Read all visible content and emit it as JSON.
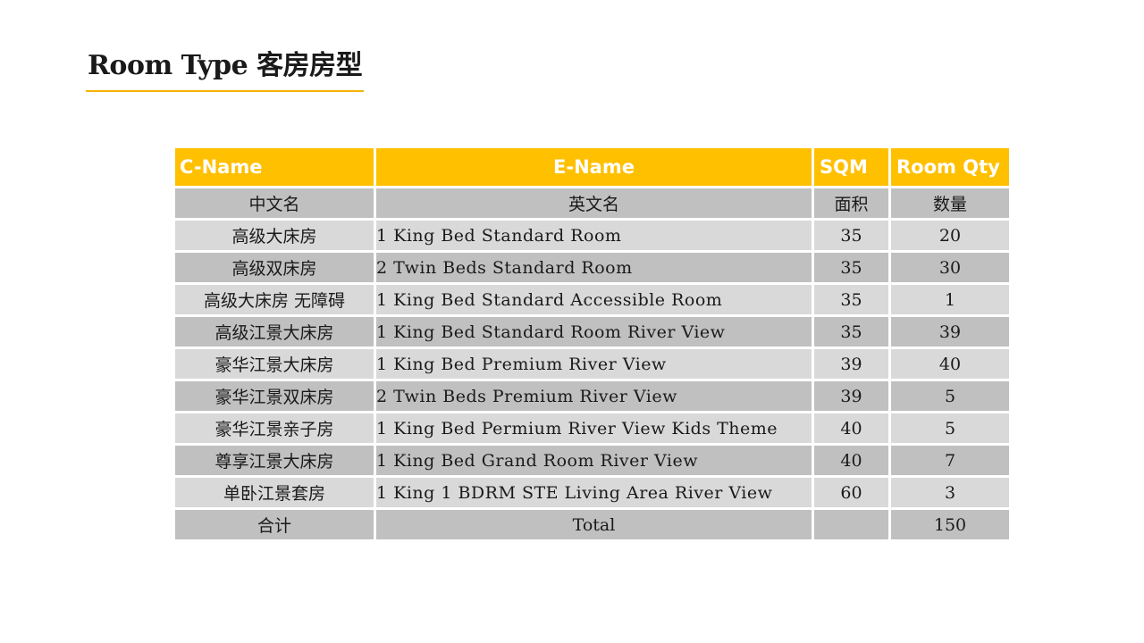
{
  "title": "Room Type 客房房型",
  "table": {
    "headers": [
      "C-Name",
      "E-Name",
      "SQM",
      "Room Qty"
    ],
    "subheaders": [
      "中文名",
      "英文名",
      "面积",
      "数量"
    ],
    "rows": [
      {
        "cn": "高级大床房",
        "en": "1 King Bed Standard Room",
        "sqm": "35",
        "qty": "20"
      },
      {
        "cn": "高级双床房",
        "en": "2 Twin Beds Standard Room",
        "sqm": "35",
        "qty": "30"
      },
      {
        "cn": "高级大床房 无障碍",
        "en": "1 King Bed Standard Accessible Room",
        "sqm": "35",
        "qty": "1"
      },
      {
        "cn": "高级江景大床房",
        "en": "1 King Bed Standard Room River View",
        "sqm": "35",
        "qty": "39"
      },
      {
        "cn": "豪华江景大床房",
        "en": "1 King Bed Premium River View",
        "sqm": "39",
        "qty": "40"
      },
      {
        "cn": "豪华江景双床房",
        "en": "2 Twin Beds Premium River View",
        "sqm": "39",
        "qty": "5"
      },
      {
        "cn": "豪华江景亲子房",
        "en": "1 King Bed Permium River View Kids Theme",
        "sqm": "40",
        "qty": "5"
      },
      {
        "cn": "尊享江景大床房",
        "en": "1 King Bed Grand Room River View",
        "sqm": "40",
        "qty": "7"
      },
      {
        "cn": "单卧江景套房",
        "en": "1 King 1 BDRM STE Living Area River View",
        "sqm": "60",
        "qty": "3"
      }
    ],
    "total": {
      "cn": "合计",
      "en": "Total",
      "sqm": "",
      "qty": "150"
    }
  },
  "colors": {
    "accent": "#ffc000",
    "row_light": "#d9d9d9",
    "row_dark": "#c0c0c0"
  }
}
